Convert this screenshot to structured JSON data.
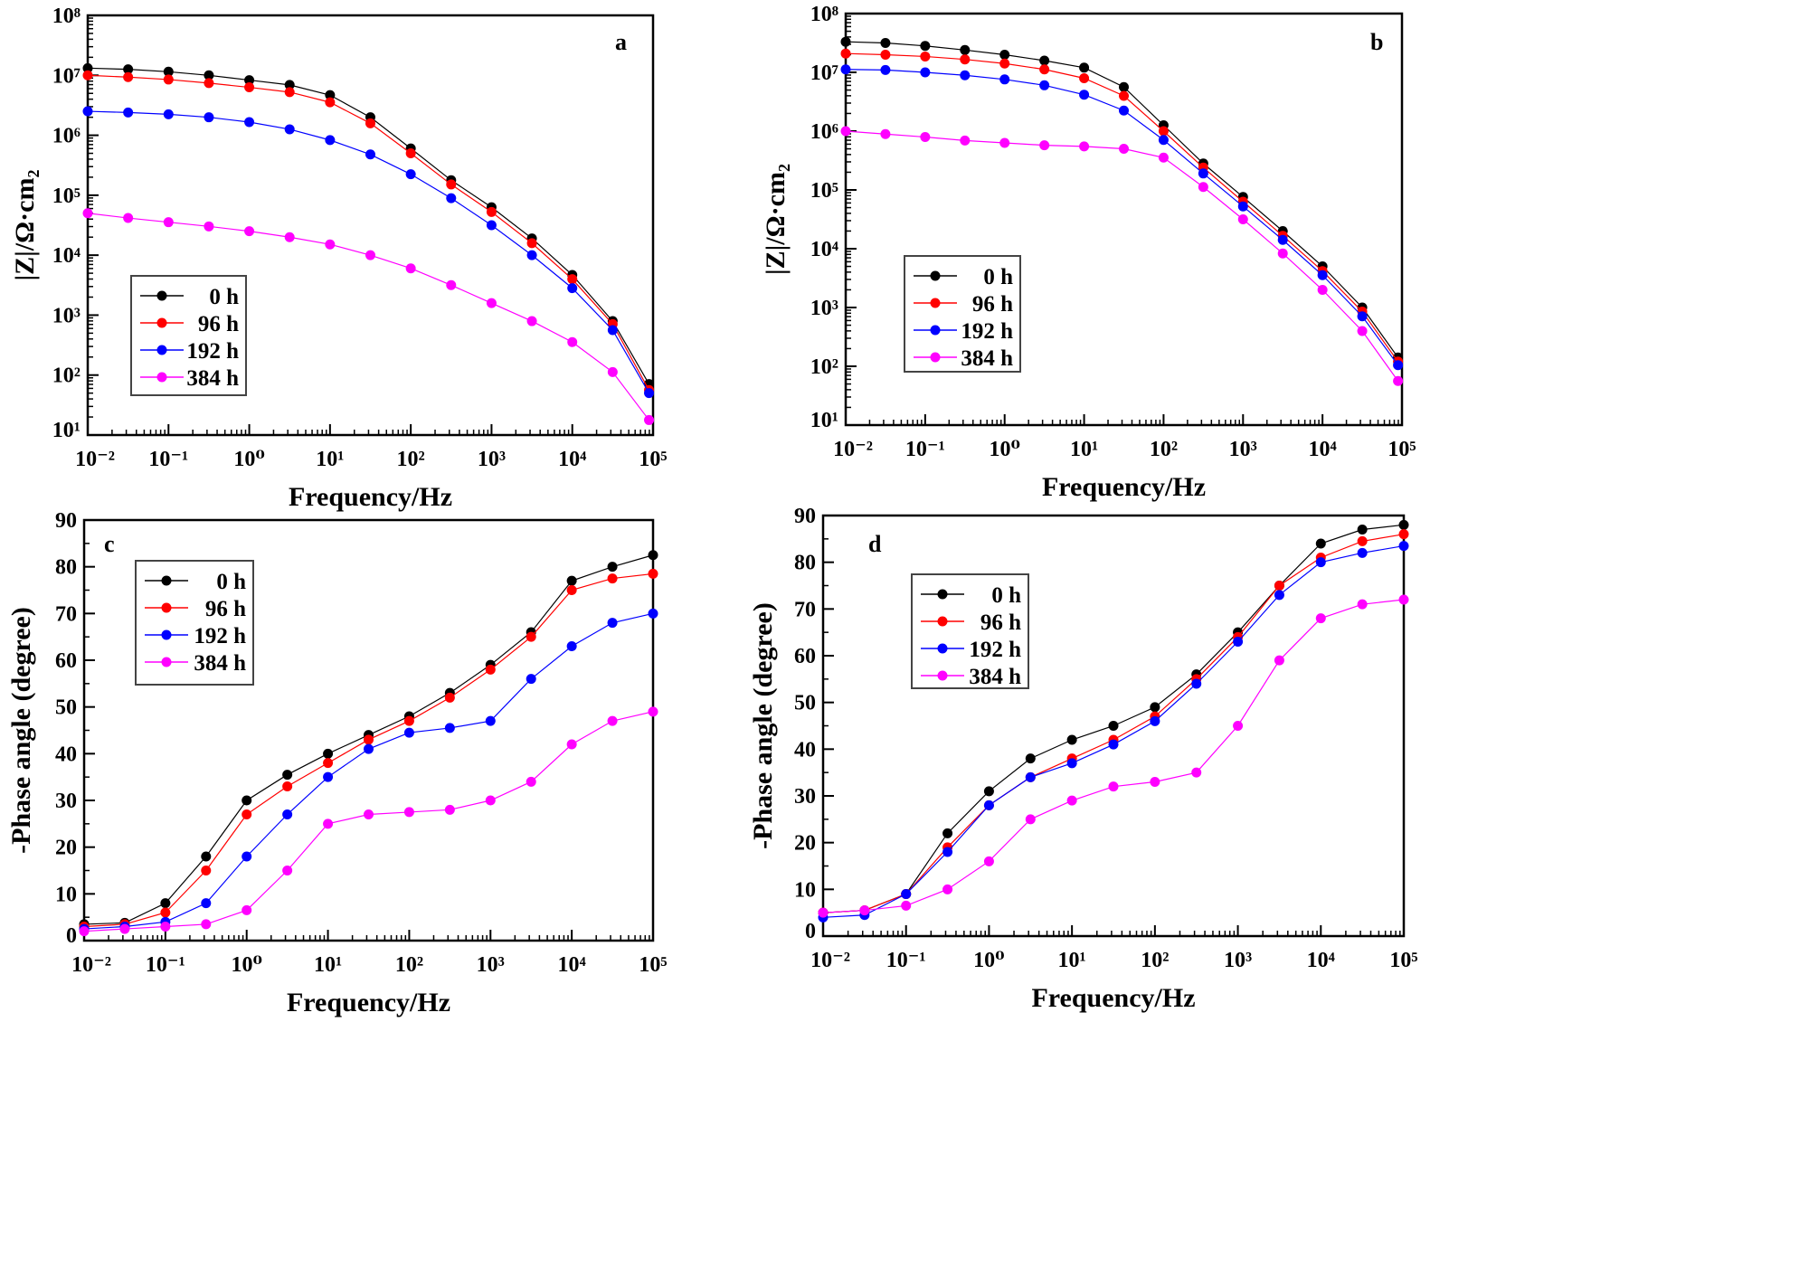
{
  "chart_data": [
    {
      "type": "scatter",
      "panel_label": "a",
      "xlabel": "Frequency/Hz",
      "ylabel": "|Z|/Ω·cm₂",
      "xscale": "log",
      "yscale": "log",
      "xlim": [
        0.01,
        100000
      ],
      "ylim": [
        10,
        100000000
      ],
      "x_tick_labels": [
        "10⁻²",
        "10⁻¹",
        "10⁰",
        "10¹",
        "10²",
        "10³",
        "10⁴",
        "10⁵"
      ],
      "y_tick_labels": [
        "10¹",
        "10²",
        "10³",
        "10⁴",
        "10⁵",
        "10⁶",
        "10⁷",
        "10⁸"
      ],
      "legend_position": "bottom-left",
      "log10_x": [
        -2,
        -1.5,
        -1,
        -0.5,
        0,
        0.5,
        1,
        1.5,
        2,
        2.5,
        3,
        3.5,
        4,
        4.5,
        4.95
      ],
      "series": [
        {
          "name": "0 h",
          "color": "#000000",
          "log10_y": [
            7.12,
            7.1,
            7.06,
            7.0,
            6.92,
            6.84,
            6.67,
            6.3,
            5.78,
            5.25,
            4.8,
            4.28,
            3.67,
            2.9,
            1.85
          ]
        },
        {
          "name": "96 h",
          "color": "#ff0000",
          "log10_y": [
            7.0,
            6.97,
            6.93,
            6.87,
            6.8,
            6.72,
            6.55,
            6.2,
            5.7,
            5.18,
            4.72,
            4.2,
            3.6,
            2.85,
            1.75
          ]
        },
        {
          "name": "192 h",
          "color": "#0000ff",
          "log10_y": [
            6.4,
            6.38,
            6.35,
            6.3,
            6.22,
            6.1,
            5.92,
            5.68,
            5.35,
            4.95,
            4.5,
            4.0,
            3.45,
            2.75,
            1.7
          ]
        },
        {
          "name": "384 h",
          "color": "#ff00ff",
          "log10_y": [
            4.7,
            4.62,
            4.55,
            4.48,
            4.4,
            4.3,
            4.18,
            4.0,
            3.78,
            3.5,
            3.2,
            2.9,
            2.55,
            2.05,
            1.25
          ]
        }
      ]
    },
    {
      "type": "scatter",
      "panel_label": "b",
      "xlabel": "Frequency/Hz",
      "ylabel": "|Z|/Ω·cm₂",
      "xscale": "log",
      "yscale": "log",
      "xlim": [
        0.01,
        100000
      ],
      "ylim": [
        10,
        100000000
      ],
      "x_tick_labels": [
        "10⁻²",
        "10⁻¹",
        "10⁰",
        "10¹",
        "10²",
        "10³",
        "10⁴",
        "10⁵"
      ],
      "y_tick_labels": [
        "10¹",
        "10²",
        "10³",
        "10⁴",
        "10⁵",
        "10⁶",
        "10⁷",
        "10⁸"
      ],
      "legend_position": "bottom-left",
      "log10_x": [
        -2,
        -1.5,
        -1,
        -0.5,
        0,
        0.5,
        1,
        1.5,
        2,
        2.5,
        3,
        3.5,
        4,
        4.5,
        4.95
      ],
      "series": [
        {
          "name": "0 h",
          "color": "#000000",
          "log10_y": [
            7.52,
            7.5,
            7.45,
            7.38,
            7.3,
            7.2,
            7.08,
            6.75,
            6.1,
            5.45,
            4.88,
            4.3,
            3.7,
            3.0,
            2.15
          ]
        },
        {
          "name": "96 h",
          "color": "#ff0000",
          "log10_y": [
            7.32,
            7.3,
            7.27,
            7.22,
            7.15,
            7.05,
            6.9,
            6.6,
            6.0,
            5.38,
            4.8,
            4.22,
            3.62,
            2.93,
            2.08
          ]
        },
        {
          "name": "192 h",
          "color": "#0000ff",
          "log10_y": [
            7.05,
            7.04,
            7.0,
            6.95,
            6.88,
            6.78,
            6.62,
            6.35,
            5.85,
            5.28,
            4.72,
            4.15,
            3.55,
            2.85,
            2.02
          ]
        },
        {
          "name": "384 h",
          "color": "#ff00ff",
          "log10_y": [
            6.0,
            5.95,
            5.9,
            5.84,
            5.8,
            5.76,
            5.74,
            5.7,
            5.55,
            5.05,
            4.5,
            3.92,
            3.3,
            2.6,
            1.75
          ]
        }
      ]
    },
    {
      "type": "scatter",
      "panel_label": "c",
      "xlabel": "Frequency/Hz",
      "ylabel": "-Phase angle (degree)",
      "xscale": "log",
      "yscale": "linear",
      "xlim": [
        0.01,
        100000
      ],
      "ylim": [
        0,
        90
      ],
      "x_tick_labels": [
        "10⁻²",
        "10⁻¹",
        "10⁰",
        "10¹",
        "10²",
        "10³",
        "10⁴",
        "10⁵"
      ],
      "y_tick_labels": [
        "0",
        "10",
        "20",
        "30",
        "40",
        "50",
        "60",
        "70",
        "80",
        "90"
      ],
      "legend_position": "top-left",
      "log10_x": [
        -2,
        -1.5,
        -1,
        -0.5,
        0,
        0.5,
        1,
        1.5,
        2,
        2.5,
        3,
        3.5,
        4,
        4.5,
        5
      ],
      "series": [
        {
          "name": "0 h",
          "color": "#000000",
          "y": [
            3.5,
            3.8,
            8,
            18,
            30,
            35.5,
            40,
            44,
            48,
            53,
            59,
            66,
            77,
            80,
            82.5
          ]
        },
        {
          "name": "96 h",
          "color": "#ff0000",
          "y": [
            3,
            3.5,
            6,
            15,
            27,
            33,
            38,
            43,
            47,
            52,
            58,
            65,
            75,
            77.5,
            78.5
          ]
        },
        {
          "name": "192 h",
          "color": "#0000ff",
          "y": [
            2.5,
            3,
            4,
            8,
            18,
            27,
            35,
            41,
            44.5,
            45.5,
            47,
            56,
            63,
            68,
            70
          ]
        },
        {
          "name": "384 h",
          "color": "#ff00ff",
          "y": [
            2,
            2.5,
            3,
            3.5,
            6.5,
            15,
            25,
            27,
            27.5,
            28,
            30,
            34,
            42,
            47,
            49
          ]
        }
      ]
    },
    {
      "type": "scatter",
      "panel_label": "d",
      "xlabel": "Frequency/Hz",
      "ylabel": "-Phase angle (degree)",
      "xscale": "log",
      "yscale": "linear",
      "xlim": [
        0.01,
        100000
      ],
      "ylim": [
        0,
        90
      ],
      "x_tick_labels": [
        "10⁻²",
        "10⁻¹",
        "10⁰",
        "10¹",
        "10²",
        "10³",
        "10⁴",
        "10⁵"
      ],
      "y_tick_labels": [
        "0",
        "10",
        "20",
        "30",
        "40",
        "50",
        "60",
        "70",
        "80",
        "90"
      ],
      "legend_position": "top-left",
      "log10_x": [
        -2,
        -1.5,
        -1,
        -0.5,
        0,
        0.5,
        1,
        1.5,
        2,
        2.5,
        3,
        3.5,
        4,
        4.5,
        5
      ],
      "series": [
        {
          "name": "0 h",
          "color": "#000000",
          "y": [
            5,
            5.5,
            9,
            22,
            31,
            38,
            42,
            45,
            49,
            56,
            65,
            75,
            84,
            87,
            88
          ]
        },
        {
          "name": "96 h",
          "color": "#ff0000",
          "y": [
            5,
            5.5,
            9,
            19,
            28,
            34,
            38,
            42,
            47,
            55,
            64,
            75,
            81,
            84.5,
            86
          ]
        },
        {
          "name": "192 h",
          "color": "#0000ff",
          "y": [
            4,
            4.5,
            9,
            18,
            28,
            34,
            37,
            41,
            46,
            54,
            63,
            73,
            80,
            82,
            83.5
          ]
        },
        {
          "name": "384 h",
          "color": "#ff00ff",
          "y": [
            5,
            5.5,
            6.5,
            10,
            16,
            25,
            29,
            32,
            33,
            35,
            45,
            59,
            68,
            71,
            72
          ]
        }
      ]
    }
  ]
}
